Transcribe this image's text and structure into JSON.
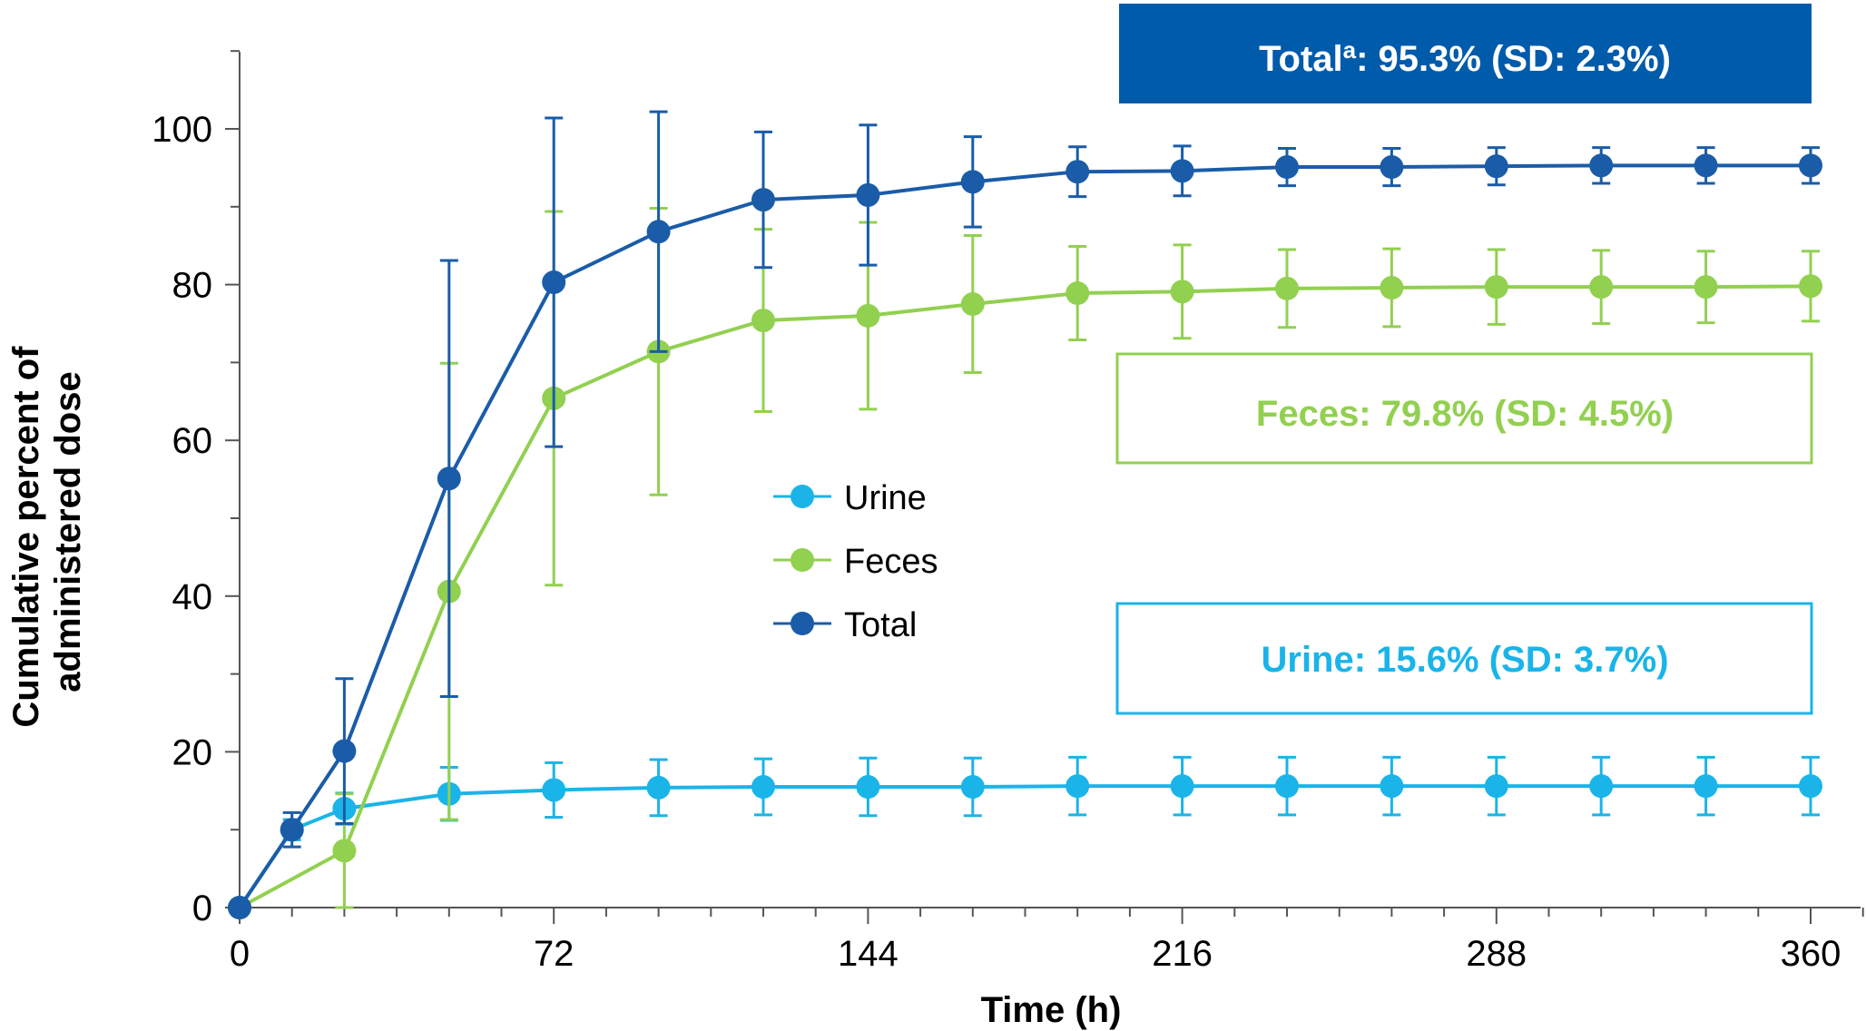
{
  "chart_data": {
    "type": "line",
    "xlabel": "Time (h)",
    "ylabel_lines": [
      "Cumulative percent of",
      "administered dose"
    ],
    "xlim": [
      0,
      360
    ],
    "ylim": [
      0,
      100
    ],
    "xticks": [
      0,
      72,
      144,
      216,
      288,
      360
    ],
    "xtick_labels": [
      "0",
      "72",
      "144",
      "216",
      "288",
      "360"
    ],
    "yticks": [
      0,
      20,
      40,
      60,
      80,
      100
    ],
    "ytick_labels": [
      "0",
      "20",
      "40",
      "60",
      "80",
      "100"
    ],
    "grid": false,
    "legend_position": "center",
    "series": [
      {
        "name": "Urine",
        "color": "#1ab4e8",
        "x": [
          0,
          12,
          24,
          48,
          72,
          96,
          120,
          144,
          168,
          192,
          216,
          240,
          264,
          288,
          312,
          336,
          360
        ],
        "y": [
          0,
          10.0,
          12.7,
          14.6,
          15.1,
          15.4,
          15.5,
          15.5,
          15.5,
          15.6,
          15.6,
          15.6,
          15.6,
          15.6,
          15.6,
          15.6,
          15.6
        ],
        "err": [
          0,
          1.3,
          2.0,
          3.4,
          3.5,
          3.6,
          3.6,
          3.7,
          3.7,
          3.7,
          3.7,
          3.7,
          3.7,
          3.7,
          3.7,
          3.7,
          3.7
        ]
      },
      {
        "name": "Feces",
        "color": "#92d050",
        "x": [
          0,
          24,
          48,
          72,
          96,
          120,
          144,
          168,
          192,
          216,
          240,
          264,
          288,
          312,
          336,
          360
        ],
        "y": [
          0,
          7.3,
          40.6,
          65.4,
          71.4,
          75.4,
          76.0,
          77.5,
          78.9,
          79.1,
          79.5,
          79.6,
          79.7,
          79.7,
          79.7,
          79.8
        ],
        "err": [
          0,
          7.3,
          29.3,
          24.0,
          18.4,
          11.7,
          12.0,
          8.8,
          6.0,
          6.0,
          5.0,
          5.0,
          4.8,
          4.7,
          4.6,
          4.5
        ]
      },
      {
        "name": "Total",
        "color": "#1a5ca8",
        "x": [
          0,
          12,
          24,
          48,
          72,
          96,
          120,
          144,
          168,
          192,
          216,
          240,
          264,
          288,
          312,
          336,
          360
        ],
        "y": [
          0,
          10.0,
          20.1,
          55.1,
          80.3,
          86.8,
          90.9,
          91.5,
          93.2,
          94.5,
          94.6,
          95.1,
          95.1,
          95.2,
          95.3,
          95.3,
          95.3
        ],
        "err": [
          0,
          2.2,
          9.3,
          28.0,
          21.1,
          15.4,
          8.7,
          9.0,
          5.8,
          3.2,
          3.2,
          2.4,
          2.4,
          2.4,
          2.3,
          2.3,
          2.3
        ]
      }
    ],
    "annotations": [
      {
        "series": "Total",
        "prefix": "Total",
        "sup": "a",
        "text": ": 95.3% (SD: 2.3%)",
        "style": "filled",
        "fill": "#005bab",
        "text_color": "#ffffff"
      },
      {
        "series": "Feces",
        "text": "Feces: 79.8% (SD: 4.5%)",
        "style": "outline",
        "stroke": "#92d050",
        "text_color": "#92d050"
      },
      {
        "series": "Urine",
        "text": "Urine: 15.6% (SD: 3.7%)",
        "style": "outline",
        "stroke": "#1ab4e8",
        "text_color": "#1ab4e8"
      }
    ]
  }
}
